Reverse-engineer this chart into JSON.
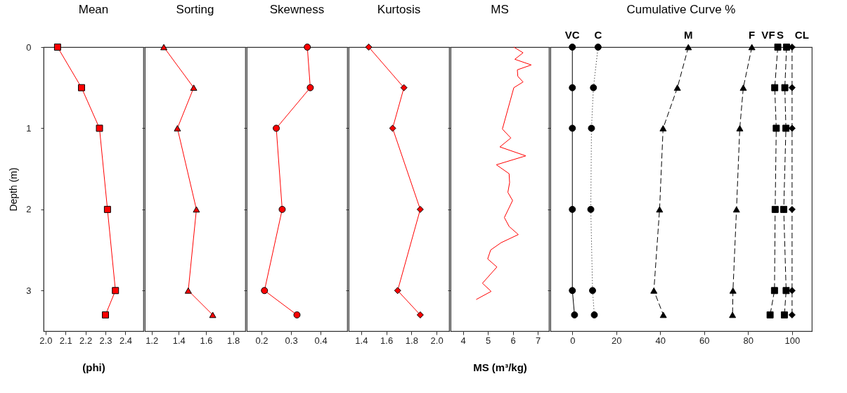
{
  "chart_data": [
    {
      "type": "line",
      "title": "Mean",
      "xlabel": "(phi)",
      "ylabel": "Depth (m)",
      "color": "#ff0000",
      "marker": "square",
      "x": [
        2.06,
        2.18,
        2.27,
        2.31,
        2.35,
        2.3
      ],
      "values": [
        0,
        0.5,
        1,
        2,
        3,
        3.3
      ],
      "xlim": [
        1.99,
        2.49
      ],
      "xticks": [
        {
          "value": 2,
          "label": "2.0"
        },
        2.1,
        2.2,
        2.3,
        2.4
      ],
      "ylim": [
        3.5,
        0
      ],
      "yticks": [
        0,
        1,
        2,
        3
      ]
    },
    {
      "type": "line",
      "title": "Sorting",
      "color": "#ff0000",
      "marker": "triangle",
      "x": [
        1.29,
        1.51,
        1.39,
        1.53,
        1.47,
        1.65
      ],
      "values": [
        0,
        0.5,
        1,
        2,
        3,
        3.3
      ],
      "xlim": [
        1.15,
        1.89
      ],
      "xticks": [
        1.2,
        1.4,
        1.6,
        1.8
      ],
      "ylim": [
        3.5,
        0
      ],
      "yticks": [
        0,
        1,
        2,
        3
      ],
      "tick_labels": "x"
    },
    {
      "type": "line",
      "title": "Skewness",
      "color": "#ff0000",
      "marker": "circle",
      "x": [
        0.355,
        0.365,
        0.25,
        0.27,
        0.21,
        0.32
      ],
      "values": [
        0,
        0.5,
        1,
        2,
        3,
        3.3
      ],
      "xlim": [
        0.15,
        0.49
      ],
      "xticks": [
        0.2,
        0.3,
        0.4
      ],
      "ylim": [
        3.5,
        0
      ],
      "yticks": [
        0,
        1,
        2,
        3
      ],
      "tick_labels": "x"
    },
    {
      "type": "line",
      "title": "Kurtosis",
      "color": "#ff0000",
      "marker": "diamond",
      "x": [
        1.46,
        1.74,
        1.65,
        1.87,
        1.69,
        1.87
      ],
      "values": [
        0,
        0.5,
        1,
        2,
        3,
        3.3
      ],
      "xlim": [
        1.3,
        2.1
      ],
      "xticks": [
        1.4,
        1.6,
        1.8,
        {
          "value": 2,
          "label": "2.0"
        }
      ],
      "ylim": [
        3.5,
        0
      ],
      "yticks": [
        0,
        1,
        2,
        3
      ],
      "tick_labels": "x"
    },
    {
      "type": "line",
      "title": "MS",
      "xlabel": "MS (m³/kg)",
      "color": "#ff0000",
      "x": [
        6.04,
        6.41,
        6.08,
        6.74,
        6.18,
        6.2,
        6.41,
        6.04,
        5.58,
        5.92,
        5.48,
        6.52,
        5.34,
        5.85,
        5.87,
        5.8,
        5.99,
        5.66,
        5.85,
        6.22,
        5.53,
        5.11,
        4.99,
        5.36,
        4.78,
        5.13,
        4.53
      ],
      "values": [
        0,
        0.07,
        0.15,
        0.22,
        0.28,
        0.36,
        0.43,
        0.5,
        1.01,
        1.12,
        1.23,
        1.34,
        1.45,
        1.56,
        1.67,
        1.79,
        1.89,
        2.1,
        2.21,
        2.31,
        2.41,
        2.5,
        2.61,
        2.71,
        2.91,
        3.01,
        3.11
      ],
      "xlim": [
        3.5,
        7.45
      ],
      "xticks": [
        4,
        5,
        6,
        7
      ],
      "ylim": [
        3.5,
        0
      ],
      "yticks": [
        0,
        1,
        2,
        3
      ],
      "tick_labels": "x"
    },
    {
      "type": "line",
      "title": "Cumulative Curve %",
      "xlim": [
        -10,
        109
      ],
      "xticks": [
        0,
        20,
        40,
        60,
        80,
        100
      ],
      "ylim": [
        3.5,
        0
      ],
      "yticks": [
        0,
        1,
        2,
        3
      ],
      "tick_labels": "x",
      "series": [
        {
          "name": "VC",
          "color": "#000000",
          "marker": "circle",
          "line_style": "solid",
          "x": [
            0,
            0,
            0,
            0,
            0,
            1
          ],
          "values": [
            0,
            0.5,
            1,
            2,
            3,
            3.3
          ]
        },
        {
          "name": "C",
          "color": "#000000",
          "marker": "circle",
          "line_style": "dotted",
          "x": [
            11.7,
            9.6,
            8.7,
            8.4,
            9.2,
            10
          ],
          "values": [
            0,
            0.5,
            1,
            2,
            3,
            3.3
          ]
        },
        {
          "name": "M",
          "color": "#000000",
          "marker": "triangle",
          "line_style": "dashed",
          "x": [
            52.8,
            47.8,
            41.3,
            39.7,
            37.1,
            41.4
          ],
          "values": [
            0,
            0.5,
            1,
            2,
            3,
            3.3
          ]
        },
        {
          "name": "F",
          "color": "#000000",
          "marker": "triangle",
          "line_style": "dashed",
          "x": [
            81.7,
            77.8,
            76.2,
            74.7,
            73.1,
            72.9
          ],
          "values": [
            0,
            0.5,
            1,
            2,
            3,
            3.3
          ]
        },
        {
          "name": "VF",
          "color": "#000000",
          "marker": "square",
          "line_style": "dashed",
          "x": [
            93.5,
            92.1,
            92.8,
            92.3,
            92,
            90
          ],
          "values": [
            0,
            0.5,
            1,
            2,
            3,
            3.3
          ]
        },
        {
          "name": "S",
          "color": "#000000",
          "marker": "square",
          "line_style": "dashed",
          "x": [
            97.5,
            96.7,
            97.2,
            96.2,
            97.3,
            96.5
          ],
          "values": [
            0,
            0.5,
            1,
            2,
            3,
            3.3
          ]
        },
        {
          "name": "CL",
          "color": "#000000",
          "marker": "diamond",
          "line_style": "dashed",
          "x": [
            100,
            100,
            100,
            100,
            100,
            100
          ],
          "values": [
            0,
            0.5,
            1,
            2,
            3,
            3.3
          ]
        }
      ]
    }
  ]
}
